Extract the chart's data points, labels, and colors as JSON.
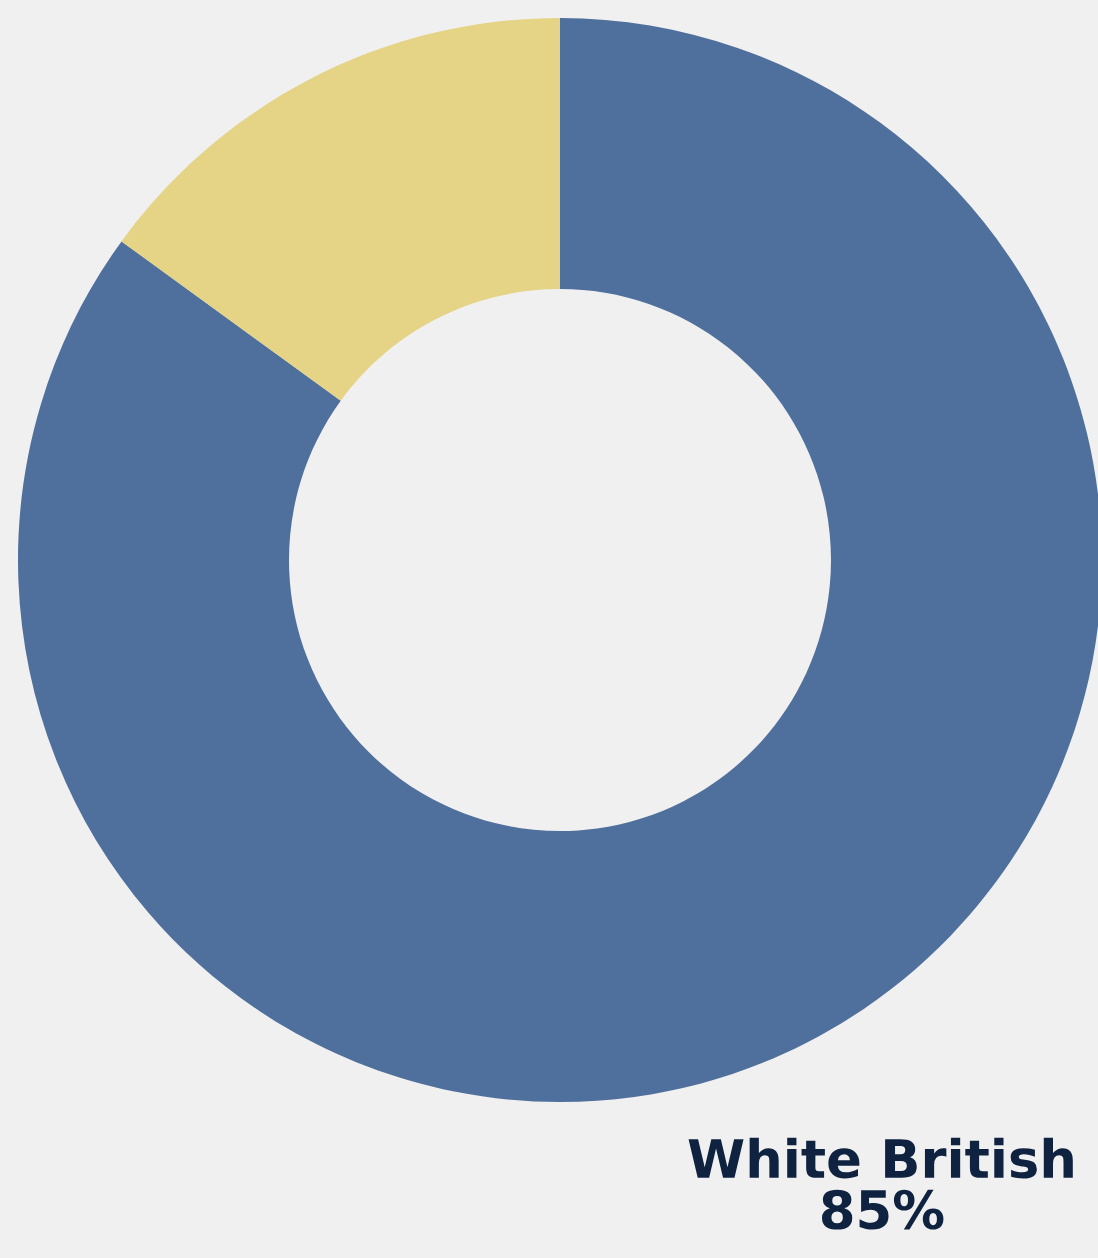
{
  "chart_data": {
    "type": "donut",
    "categories": [
      "White British",
      null
    ],
    "values": [
      85,
      15
    ],
    "colors": [
      "#4f6f9c",
      "#e5d386"
    ],
    "value_labels": [
      "85%",
      null
    ]
  }
}
